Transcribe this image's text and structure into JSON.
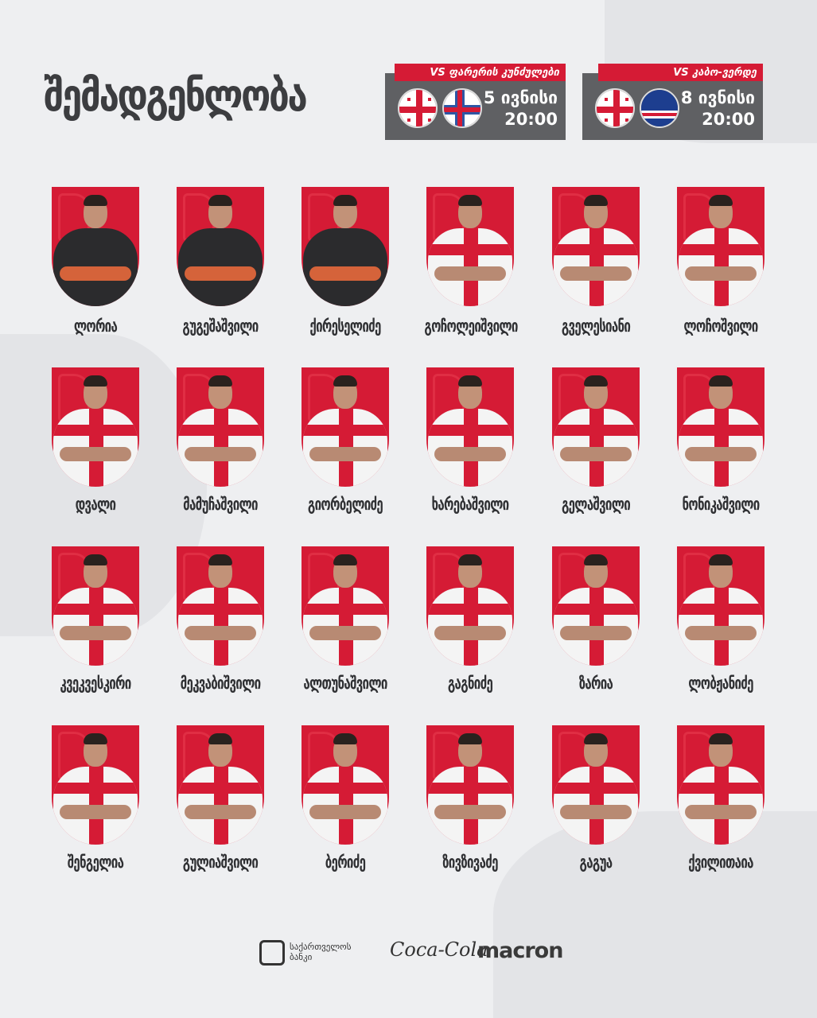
{
  "title": "შემადგენლობა",
  "colors": {
    "accent": "#d51b35",
    "panel": "#5f6063",
    "background": "#eeeff1"
  },
  "matches": [
    {
      "opponent": "VS ფარერის კუნძულები",
      "date": "5 ივნისი",
      "time": "20:00",
      "flags": [
        "georgia-flag",
        "faroe-islands-flag"
      ]
    },
    {
      "opponent": "VS კაბო-ვერდე",
      "date": "8 ივნისი",
      "time": "20:00",
      "flags": [
        "georgia-flag",
        "cape-verde-flag"
      ]
    }
  ],
  "players": [
    {
      "name": "ლორია",
      "kit": "goalkeeper"
    },
    {
      "name": "გუგეშაშვილი",
      "kit": "goalkeeper"
    },
    {
      "name": "ქირესელიძე",
      "kit": "goalkeeper"
    },
    {
      "name": "გოჩოლეიშვილი",
      "kit": "outfield"
    },
    {
      "name": "გველესიანი",
      "kit": "outfield"
    },
    {
      "name": "ლოჩოშვილი",
      "kit": "outfield"
    },
    {
      "name": "დვალი",
      "kit": "outfield"
    },
    {
      "name": "მამუჩაშვილი",
      "kit": "outfield"
    },
    {
      "name": "გიორბელიძე",
      "kit": "outfield"
    },
    {
      "name": "ხარებაშვილი",
      "kit": "outfield"
    },
    {
      "name": "გელაშვილი",
      "kit": "outfield"
    },
    {
      "name": "ნონიკაშვილი",
      "kit": "outfield"
    },
    {
      "name": "კვეკვესკირი",
      "kit": "outfield"
    },
    {
      "name": "მეკვაბიშვილი",
      "kit": "outfield"
    },
    {
      "name": "ალთუნაშვილი",
      "kit": "outfield"
    },
    {
      "name": "გაგნიძე",
      "kit": "outfield"
    },
    {
      "name": "ზარია",
      "kit": "outfield"
    },
    {
      "name": "ლობჟანიძე",
      "kit": "outfield"
    },
    {
      "name": "შენგელია",
      "kit": "outfield"
    },
    {
      "name": "გულიაშვილი",
      "kit": "outfield"
    },
    {
      "name": "ბერიძე",
      "kit": "outfield"
    },
    {
      "name": "ზივზივაძე",
      "kit": "outfield"
    },
    {
      "name": "გაგუა",
      "kit": "outfield"
    },
    {
      "name": "ქვილითაია",
      "kit": "outfield"
    }
  ],
  "sponsors": {
    "bank": "საქართველოს ბანკი",
    "bank_line1": "საქართველოს",
    "bank_line2": "ბანკი",
    "cola": "Coca-Cola",
    "macron": "macron"
  }
}
